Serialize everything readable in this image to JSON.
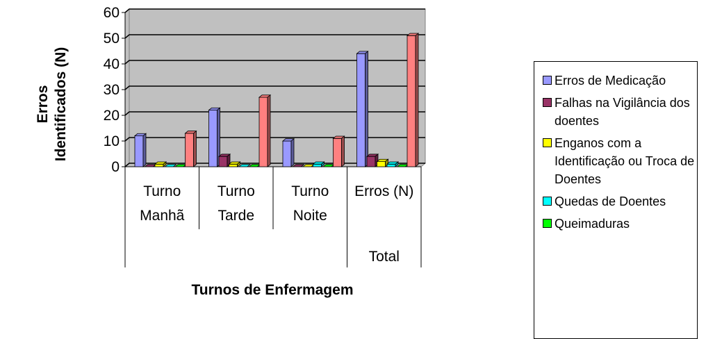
{
  "chart_data": {
    "type": "bar3d",
    "y_label": "Erros Identificados (N)",
    "x_label": "Turnos de Enfermagem",
    "categories": [
      "Turno Manhã",
      "Turno Tarde",
      "Turno Noite",
      "Erros (N)"
    ],
    "category_group": "Total",
    "series": [
      {
        "name": "Erros de Medicação",
        "color": "#9999ff",
        "values": [
          12,
          22,
          10,
          44
        ]
      },
      {
        "name": "Falhas na Vigilância dos doentes",
        "color": "#993366",
        "values": [
          0,
          4,
          0,
          4
        ]
      },
      {
        "name": "Enganos com a Identificação ou Troca de Doentes",
        "color": "#ffff00",
        "values": [
          1,
          1,
          0,
          2
        ]
      },
      {
        "name": "Quedas de Doentes",
        "color": "#00ffff",
        "values": [
          0,
          0,
          1,
          1
        ]
      },
      {
        "name": "Queimaduras",
        "color": "#00ff00",
        "values": [
          0,
          0,
          0,
          0
        ]
      },
      {
        "color": "#ff8080",
        "values": [
          13,
          27,
          11,
          51
        ]
      }
    ],
    "ylim": [
      0,
      60
    ],
    "yticks": [
      0,
      10,
      20,
      30,
      40,
      50,
      60
    ],
    "grid": true,
    "legend": "right"
  }
}
